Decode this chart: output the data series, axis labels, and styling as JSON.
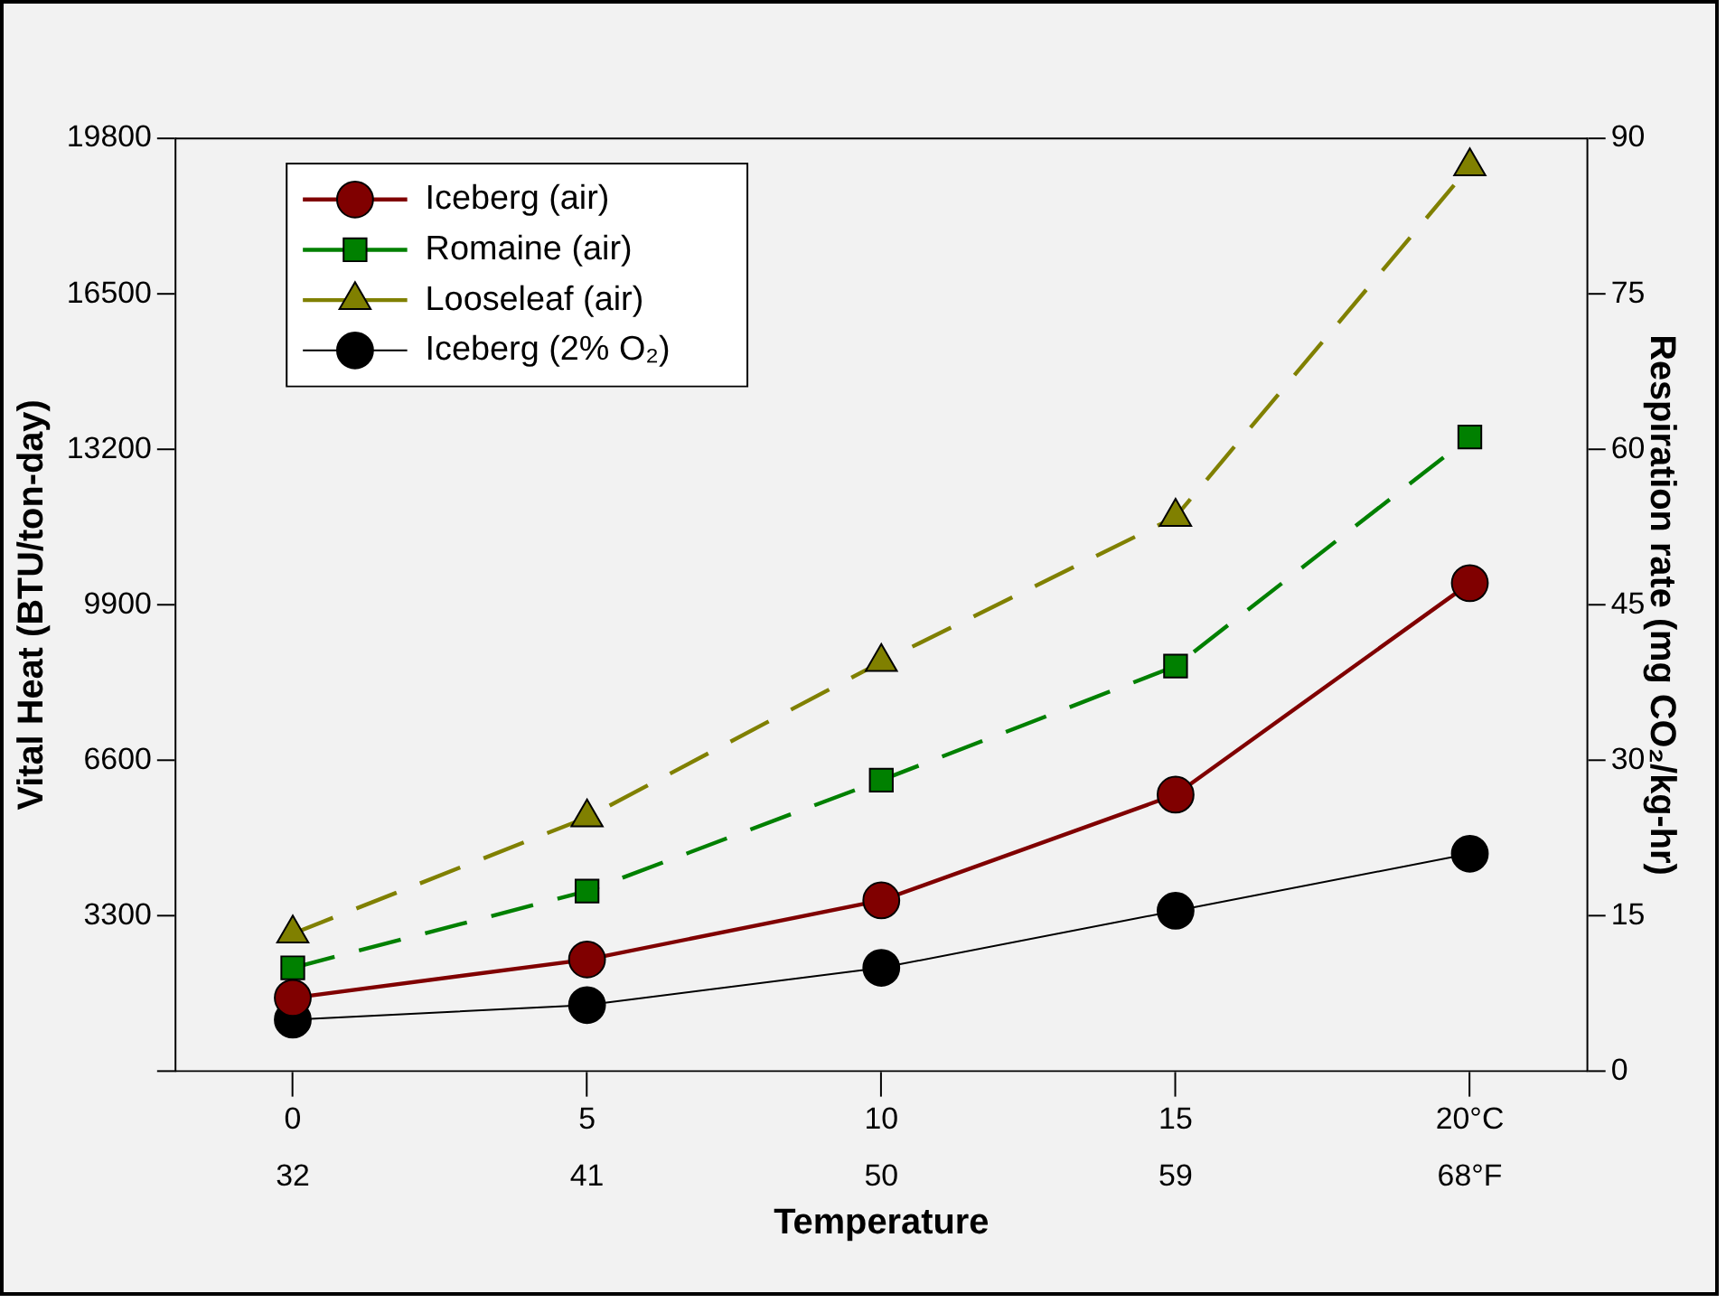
{
  "chart_data": {
    "type": "line",
    "xlabel": "Temperature",
    "ylabel": "Vital Heat (BTU/ton-day)",
    "y2label": "Respiration rate (mg CO₂/kg-hr)",
    "x": [
      0,
      5,
      10,
      15,
      20
    ],
    "xlim": [
      -2,
      22
    ],
    "xticks": [
      0,
      5,
      10,
      15,
      {
        "value": 20,
        "label": "20°C"
      }
    ],
    "x2lim": [
      28.4,
      71.6
    ],
    "x2ticks": [
      32,
      41,
      50,
      59,
      {
        "value": 68,
        "label": "68°F"
      }
    ],
    "ylim": [
      0,
      19800
    ],
    "yticks": [
      {
        "value": 0,
        "label": null
      },
      3300,
      6600,
      9900,
      13200,
      16500,
      19800
    ],
    "y2lim": [
      0,
      90
    ],
    "y2ticks": [
      0,
      15,
      30,
      45,
      60,
      75,
      90
    ],
    "grid": false,
    "legend": "top left",
    "series": [
      {
        "name": "Iceberg (air)",
        "color": "#800000",
        "axis": "y2",
        "marker": "circle",
        "line_style": "solid",
        "values": [
          7.1,
          10.8,
          16.5,
          26.7,
          47.1
        ]
      },
      {
        "name": "Romaine (air)",
        "color": "#008000",
        "axis": "y2",
        "marker": "square",
        "line_style": "dashed",
        "values": [
          10.0,
          17.4,
          28.1,
          39.1,
          61.2
        ]
      },
      {
        "name": "Looseleaf (air)",
        "color": "#808000",
        "axis": "y2",
        "marker": "triangle",
        "line_style": "dashed",
        "values": [
          13.3,
          24.5,
          39.5,
          53.5,
          87.3
        ]
      },
      {
        "name": "Iceberg (2% O₂)",
        "color": "#000000",
        "axis": "y2",
        "marker": "circle",
        "line_style": "solid",
        "values": [
          5.0,
          6.4,
          10.0,
          15.5,
          21.0
        ]
      }
    ]
  }
}
